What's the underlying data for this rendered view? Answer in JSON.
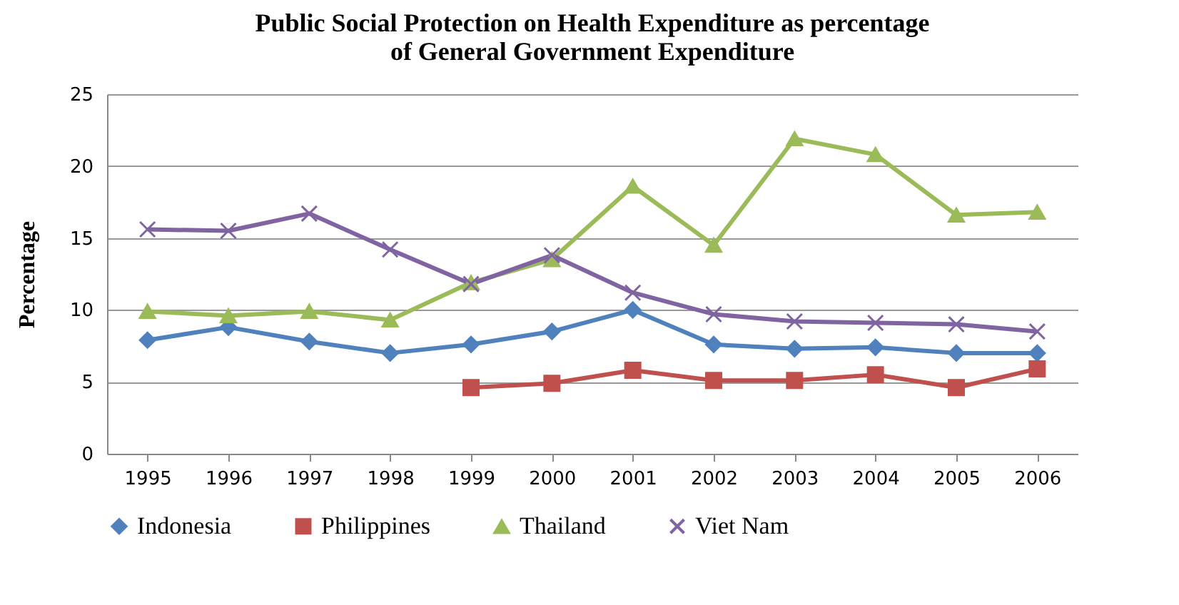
{
  "chart_data": {
    "type": "line",
    "title": "Public Social Protection on Health Expenditure as percentage\nof General Government Expenditure",
    "ylabel": "Percentage",
    "categories": [
      "1995",
      "1996",
      "1997",
      "1998",
      "1999",
      "2000",
      "2001",
      "2002",
      "2003",
      "2004",
      "2005",
      "2006"
    ],
    "series": [
      {
        "name": "Indonesia",
        "color": "#4f81bd",
        "marker": "diamond",
        "values": [
          7.9,
          8.8,
          7.8,
          7.0,
          7.6,
          8.5,
          10.0,
          7.6,
          7.3,
          7.4,
          7.0,
          7.0
        ]
      },
      {
        "name": "Philippines",
        "color": "#c0504d",
        "marker": "square",
        "values": [
          null,
          null,
          null,
          null,
          4.6,
          4.9,
          5.8,
          5.1,
          5.1,
          5.5,
          4.6,
          5.9
        ]
      },
      {
        "name": "Thailand",
        "color": "#9bbb59",
        "marker": "triangle",
        "values": [
          9.9,
          9.6,
          9.9,
          9.3,
          11.9,
          13.5,
          18.6,
          14.5,
          21.9,
          20.8,
          16.6,
          16.8
        ]
      },
      {
        "name": "Viet Nam",
        "color": "#8064a2",
        "marker": "cross",
        "values": [
          15.6,
          15.5,
          16.7,
          14.2,
          11.8,
          13.8,
          11.2,
          9.7,
          9.2,
          9.1,
          9.0,
          8.5
        ]
      }
    ],
    "ylim": [
      0,
      25
    ],
    "yticks": [
      0,
      5,
      10,
      15,
      20,
      25
    ],
    "grid": "y",
    "legend": "bottom"
  }
}
